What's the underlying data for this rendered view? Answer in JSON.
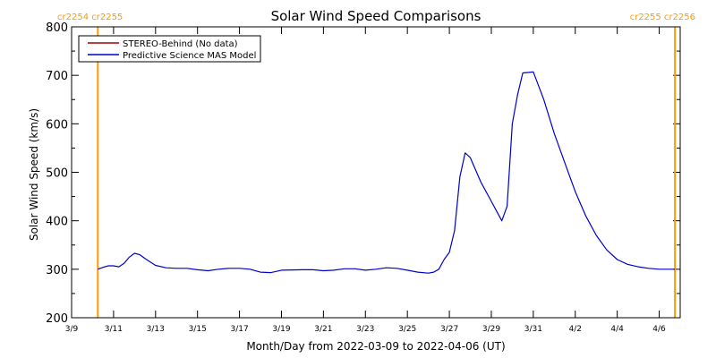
{
  "chart_data": {
    "type": "line",
    "title": "Solar Wind Speed Comparisons",
    "xlabel": "Month/Day from 2022-03-09 to 2022-04-06 (UT)",
    "ylabel": "Solar Wind Speed (km/s)",
    "ylim": [
      200,
      800
    ],
    "xlim": [
      "2022-03-09",
      "2022-04-07"
    ],
    "yticks": [
      200,
      300,
      400,
      500,
      600,
      700,
      800
    ],
    "xticks": [
      {
        "date": "2022-03-09",
        "label": "3/9"
      },
      {
        "date": "2022-03-11",
        "label": "3/11"
      },
      {
        "date": "2022-03-13",
        "label": "3/13"
      },
      {
        "date": "2022-03-15",
        "label": "3/15"
      },
      {
        "date": "2022-03-17",
        "label": "3/17"
      },
      {
        "date": "2022-03-19",
        "label": "3/19"
      },
      {
        "date": "2022-03-21",
        "label": "3/21"
      },
      {
        "date": "2022-03-23",
        "label": "3/23"
      },
      {
        "date": "2022-03-25",
        "label": "3/25"
      },
      {
        "date": "2022-03-27",
        "label": "3/27"
      },
      {
        "date": "2022-03-29",
        "label": "3/29"
      },
      {
        "date": "2022-03-31",
        "label": "3/31"
      },
      {
        "date": "2022-04-02",
        "label": "4/2"
      },
      {
        "date": "2022-04-04",
        "label": "4/4"
      },
      {
        "date": "2022-04-06",
        "label": "4/6"
      }
    ],
    "legend": {
      "placement": "top-left",
      "entries": [
        {
          "name": "STEREO-Behind (No data)",
          "color": "#a00000"
        },
        {
          "name": "Predictive Science MAS Model",
          "color": "#0000cc"
        }
      ]
    },
    "markers": [
      {
        "date": "2022-03-10 06:00",
        "label": "cr2254 cr2255",
        "color": "#ff9900"
      },
      {
        "date": "2022-04-06 18:00",
        "label": "cr2255 cr2256",
        "color": "#ff9900"
      }
    ],
    "series": [
      {
        "name": "Predictive Science MAS Model",
        "color": "#0000cc",
        "x": [
          "2022-03-10 06:00",
          "2022-03-10 12:00",
          "2022-03-10 18:00",
          "2022-03-11 00:00",
          "2022-03-11 06:00",
          "2022-03-11 12:00",
          "2022-03-11 18:00",
          "2022-03-12 00:00",
          "2022-03-12 06:00",
          "2022-03-12 12:00",
          "2022-03-12 18:00",
          "2022-03-13 00:00",
          "2022-03-13 12:00",
          "2022-03-14 00:00",
          "2022-03-14 12:00",
          "2022-03-15 00:00",
          "2022-03-15 12:00",
          "2022-03-16 00:00",
          "2022-03-16 12:00",
          "2022-03-17 00:00",
          "2022-03-17 12:00",
          "2022-03-18 00:00",
          "2022-03-18 12:00",
          "2022-03-19 00:00",
          "2022-03-20 00:00",
          "2022-03-20 12:00",
          "2022-03-21 00:00",
          "2022-03-21 12:00",
          "2022-03-22 00:00",
          "2022-03-22 12:00",
          "2022-03-23 00:00",
          "2022-03-23 12:00",
          "2022-03-24 00:00",
          "2022-03-24 12:00",
          "2022-03-25 00:00",
          "2022-03-25 12:00",
          "2022-03-26 00:00",
          "2022-03-26 06:00",
          "2022-03-26 12:00",
          "2022-03-26 18:00",
          "2022-03-27 00:00",
          "2022-03-27 06:00",
          "2022-03-27 12:00",
          "2022-03-27 18:00",
          "2022-03-28 00:00",
          "2022-03-28 12:00",
          "2022-03-29 00:00",
          "2022-03-29 06:00",
          "2022-03-29 12:00",
          "2022-03-29 18:00",
          "2022-03-30 00:00",
          "2022-03-30 06:00",
          "2022-03-30 12:00",
          "2022-03-31 00:00",
          "2022-03-31 12:00",
          "2022-04-01 00:00",
          "2022-04-01 12:00",
          "2022-04-02 00:00",
          "2022-04-02 12:00",
          "2022-04-03 00:00",
          "2022-04-03 12:00",
          "2022-04-04 00:00",
          "2022-04-04 12:00",
          "2022-04-05 00:00",
          "2022-04-05 12:00",
          "2022-04-06 00:00",
          "2022-04-06 18:00"
        ],
        "values": [
          300,
          304,
          307,
          307,
          305,
          312,
          325,
          333,
          330,
          322,
          315,
          308,
          303,
          302,
          302,
          299,
          297,
          300,
          302,
          302,
          300,
          294,
          293,
          298,
          299,
          299,
          297,
          298,
          301,
          301,
          298,
          300,
          303,
          302,
          298,
          294,
          292,
          294,
          300,
          320,
          335,
          380,
          490,
          540,
          530,
          480,
          440,
          420,
          400,
          430,
          600,
          660,
          705,
          707,
          650,
          580,
          520,
          460,
          410,
          370,
          340,
          320,
          310,
          305,
          302,
          300,
          300
        ]
      }
    ]
  }
}
